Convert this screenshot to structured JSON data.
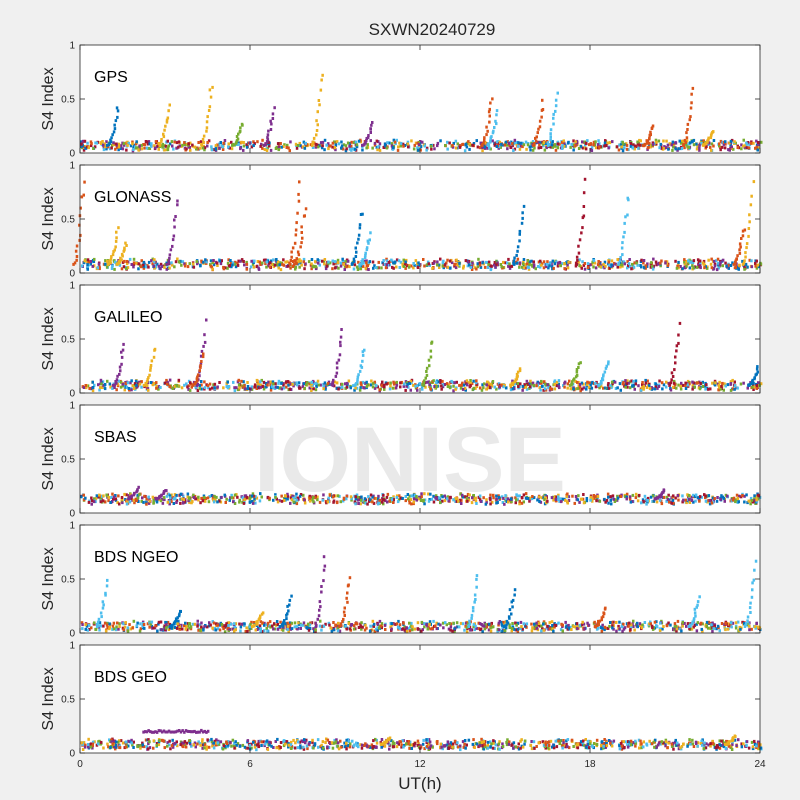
{
  "figure": {
    "title": "SXWN20240729",
    "xlabel": "UT(h)",
    "watermark": "IONISE"
  },
  "colors": {
    "background": "#f0f0f0",
    "axes_bg": "#ffffff",
    "palette": [
      "#0072bd",
      "#d95319",
      "#edb120",
      "#7e2f8e",
      "#77ac30",
      "#4dbeee",
      "#a2142f"
    ]
  },
  "chart_data": [
    {
      "type": "scatter",
      "panel_label": "GPS",
      "ylabel": "S4 Index",
      "xlim": [
        0,
        24
      ],
      "ylim": [
        0,
        1
      ],
      "xticks": [
        0,
        6,
        12,
        18,
        24
      ],
      "yticks": [
        0,
        0.5,
        1
      ],
      "ytick_labels": [
        "0",
        "0.5",
        "1"
      ],
      "baseline": 0.07,
      "peaks": [
        {
          "x": 1.3,
          "y": 0.45,
          "c": 0
        },
        {
          "x": 3.1,
          "y": 0.46,
          "c": 2
        },
        {
          "x": 4.6,
          "y": 0.68,
          "c": 2
        },
        {
          "x": 5.7,
          "y": 0.3,
          "c": 4
        },
        {
          "x": 6.8,
          "y": 0.44,
          "c": 3
        },
        {
          "x": 8.5,
          "y": 0.76,
          "c": 2
        },
        {
          "x": 10.3,
          "y": 0.3,
          "c": 3
        },
        {
          "x": 14.5,
          "y": 0.57,
          "c": 1
        },
        {
          "x": 14.7,
          "y": 0.4,
          "c": 5
        },
        {
          "x": 16.3,
          "y": 0.5,
          "c": 1
        },
        {
          "x": 16.8,
          "y": 0.62,
          "c": 5
        },
        {
          "x": 20.2,
          "y": 0.28,
          "c": 1
        },
        {
          "x": 21.6,
          "y": 0.62,
          "c": 1
        },
        {
          "x": 22.3,
          "y": 0.22,
          "c": 2
        }
      ]
    },
    {
      "type": "scatter",
      "panel_label": "GLONASS",
      "ylabel": "S4 Index",
      "xlim": [
        0,
        24
      ],
      "ylim": [
        0,
        1
      ],
      "xticks": [
        0,
        6,
        12,
        18,
        24
      ],
      "yticks": [
        0,
        0.5,
        1
      ],
      "ytick_labels": [
        "0",
        "0.5",
        "1"
      ],
      "baseline": 0.08,
      "peaks": [
        {
          "x": 0.1,
          "y": 0.92,
          "c": 1
        },
        {
          "x": 1.3,
          "y": 0.42,
          "c": 2
        },
        {
          "x": 1.6,
          "y": 0.3,
          "c": 2
        },
        {
          "x": 3.4,
          "y": 0.75,
          "c": 3
        },
        {
          "x": 7.7,
          "y": 0.86,
          "c": 1
        },
        {
          "x": 7.9,
          "y": 0.68,
          "c": 1
        },
        {
          "x": 9.9,
          "y": 0.62,
          "c": 0
        },
        {
          "x": 10.2,
          "y": 0.38,
          "c": 5
        },
        {
          "x": 15.6,
          "y": 0.7,
          "c": 0
        },
        {
          "x": 17.8,
          "y": 0.88,
          "c": 6
        },
        {
          "x": 19.3,
          "y": 0.78,
          "c": 5
        },
        {
          "x": 23.7,
          "y": 0.85,
          "c": 2
        },
        {
          "x": 23.4,
          "y": 0.45,
          "c": 1
        }
      ]
    },
    {
      "type": "scatter",
      "panel_label": "GALILEO",
      "ylabel": "S4 Index",
      "xlim": [
        0,
        24
      ],
      "ylim": [
        0,
        1
      ],
      "xticks": [
        0,
        6,
        12,
        18,
        24
      ],
      "yticks": [
        0,
        0.5,
        1
      ],
      "ytick_labels": [
        "0",
        "0.5",
        "1"
      ],
      "baseline": 0.07,
      "peaks": [
        {
          "x": 1.5,
          "y": 0.48,
          "c": 3
        },
        {
          "x": 2.6,
          "y": 0.45,
          "c": 2
        },
        {
          "x": 4.4,
          "y": 0.68,
          "c": 3
        },
        {
          "x": 4.3,
          "y": 0.38,
          "c": 1
        },
        {
          "x": 9.2,
          "y": 0.65,
          "c": 3
        },
        {
          "x": 10.0,
          "y": 0.45,
          "c": 5
        },
        {
          "x": 12.4,
          "y": 0.53,
          "c": 4
        },
        {
          "x": 15.5,
          "y": 0.25,
          "c": 2
        },
        {
          "x": 17.6,
          "y": 0.3,
          "c": 4
        },
        {
          "x": 18.6,
          "y": 0.32,
          "c": 5
        },
        {
          "x": 21.1,
          "y": 0.65,
          "c": 6
        },
        {
          "x": 23.9,
          "y": 0.25,
          "c": 0
        }
      ]
    },
    {
      "type": "scatter",
      "panel_label": "SBAS",
      "ylabel": "S4 Index",
      "xlim": [
        0,
        24
      ],
      "ylim": [
        0,
        1
      ],
      "xticks": [
        0,
        6,
        12,
        18,
        24
      ],
      "yticks": [
        0,
        0.5,
        1
      ],
      "ytick_labels": [
        "0",
        "0.5",
        "1"
      ],
      "baseline": 0.13,
      "peaks": [
        {
          "x": 2.0,
          "y": 0.24,
          "c": 3
        },
        {
          "x": 3.0,
          "y": 0.22,
          "c": 3
        },
        {
          "x": 20.6,
          "y": 0.22,
          "c": 3
        }
      ]
    },
    {
      "type": "scatter",
      "panel_label": "BDS NGEO",
      "ylabel": "S4 Index",
      "xlim": [
        0,
        24
      ],
      "ylim": [
        0,
        1
      ],
      "xticks": [
        0,
        6,
        12,
        18,
        24
      ],
      "yticks": [
        0,
        0.5,
        1
      ],
      "ytick_labels": [
        "0",
        "0.5",
        "1"
      ],
      "baseline": 0.06,
      "peaks": [
        {
          "x": 0.9,
          "y": 0.52,
          "c": 5
        },
        {
          "x": 3.5,
          "y": 0.22,
          "c": 0
        },
        {
          "x": 6.4,
          "y": 0.2,
          "c": 2
        },
        {
          "x": 7.4,
          "y": 0.35,
          "c": 0
        },
        {
          "x": 8.6,
          "y": 0.78,
          "c": 3
        },
        {
          "x": 9.5,
          "y": 0.56,
          "c": 1
        },
        {
          "x": 14.0,
          "y": 0.58,
          "c": 5
        },
        {
          "x": 15.3,
          "y": 0.42,
          "c": 0
        },
        {
          "x": 18.5,
          "y": 0.25,
          "c": 1
        },
        {
          "x": 21.8,
          "y": 0.35,
          "c": 5
        },
        {
          "x": 23.8,
          "y": 0.68,
          "c": 5
        }
      ]
    },
    {
      "type": "scatter",
      "panel_label": "BDS GEO",
      "ylabel": "S4 Index",
      "xlim": [
        0,
        24
      ],
      "ylim": [
        0,
        1
      ],
      "xticks": [
        0,
        6,
        12,
        18,
        24
      ],
      "yticks": [
        0,
        0.5,
        1
      ],
      "ytick_labels": [
        "0",
        "0.5",
        "1"
      ],
      "xtick_labels": [
        "0",
        "6",
        "12",
        "18",
        "24"
      ],
      "baseline": 0.08,
      "segment": {
        "x0": 2.2,
        "x1": 4.5,
        "y": 0.2,
        "c": 3
      },
      "peaks": [
        {
          "x": 10.9,
          "y": 0.14,
          "c": 2
        },
        {
          "x": 23.1,
          "y": 0.17,
          "c": 2
        }
      ]
    }
  ]
}
